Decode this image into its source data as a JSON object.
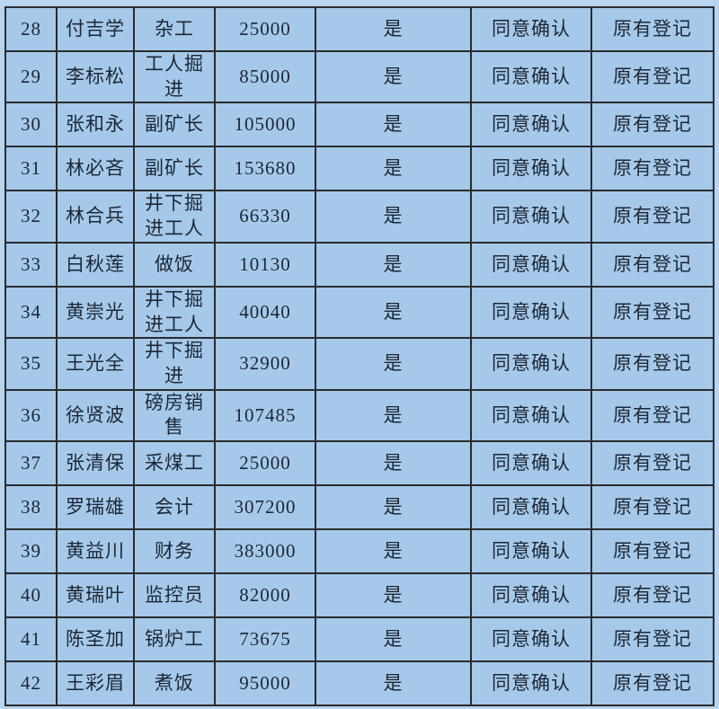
{
  "page": {
    "background_color": "#b9d4ee",
    "cell_color": "#a6c9ea",
    "border_color": "#2b2b2b",
    "text_color": "#1e2633"
  },
  "table": {
    "fields": [
      "index",
      "name",
      "job",
      "amount",
      "confirm_yes",
      "confirm_status",
      "registration"
    ],
    "rows": [
      {
        "index": "28",
        "name": "付吉学",
        "job": "杂工",
        "amount": "25000",
        "confirm_yes": "是",
        "confirm_status": "同意确认",
        "registration": "原有登记"
      },
      {
        "index": "29",
        "name": "李标松",
        "job": "工人掘进",
        "amount": "85000",
        "confirm_yes": "是",
        "confirm_status": "同意确认",
        "registration": "原有登记"
      },
      {
        "index": "30",
        "name": "张和永",
        "job": "副矿长",
        "amount": "105000",
        "confirm_yes": "是",
        "confirm_status": "同意确认",
        "registration": "原有登记"
      },
      {
        "index": "31",
        "name": "林必吝",
        "job": "副矿长",
        "amount": "153680",
        "confirm_yes": "是",
        "confirm_status": "同意确认",
        "registration": "原有登记"
      },
      {
        "index": "32",
        "name": "林合兵",
        "job": "井下掘进工人",
        "amount": "66330",
        "confirm_yes": "是",
        "confirm_status": "同意确认",
        "registration": "原有登记"
      },
      {
        "index": "33",
        "name": "白秋莲",
        "job": "做饭",
        "amount": "10130",
        "confirm_yes": "是",
        "confirm_status": "同意确认",
        "registration": "原有登记"
      },
      {
        "index": "34",
        "name": "黄崇光",
        "job": "井下掘进工人",
        "amount": "40040",
        "confirm_yes": "是",
        "confirm_status": "同意确认",
        "registration": "原有登记"
      },
      {
        "index": "35",
        "name": "王光全",
        "job": "井下掘进",
        "amount": "32900",
        "confirm_yes": "是",
        "confirm_status": "同意确认",
        "registration": "原有登记"
      },
      {
        "index": "36",
        "name": "徐贤波",
        "job": "磅房销售",
        "amount": "107485",
        "confirm_yes": "是",
        "confirm_status": "同意确认",
        "registration": "原有登记"
      },
      {
        "index": "37",
        "name": "张清保",
        "job": "采煤工",
        "amount": "25000",
        "confirm_yes": "是",
        "confirm_status": "同意确认",
        "registration": "原有登记"
      },
      {
        "index": "38",
        "name": "罗瑞雄",
        "job": "会计",
        "amount": "307200",
        "confirm_yes": "是",
        "confirm_status": "同意确认",
        "registration": "原有登记"
      },
      {
        "index": "39",
        "name": "黄益川",
        "job": "财务",
        "amount": "383000",
        "confirm_yes": "是",
        "confirm_status": "同意确认",
        "registration": "原有登记"
      },
      {
        "index": "40",
        "name": "黄瑞叶",
        "job": "监控员",
        "amount": "82000",
        "confirm_yes": "是",
        "confirm_status": "同意确认",
        "registration": "原有登记"
      },
      {
        "index": "41",
        "name": "陈圣加",
        "job": "锅炉工",
        "amount": "73675",
        "confirm_yes": "是",
        "confirm_status": "同意确认",
        "registration": "原有登记"
      },
      {
        "index": "42",
        "name": "王彩眉",
        "job": "煮饭",
        "amount": "95000",
        "confirm_yes": "是",
        "confirm_status": "同意确认",
        "registration": "原有登记"
      }
    ]
  }
}
